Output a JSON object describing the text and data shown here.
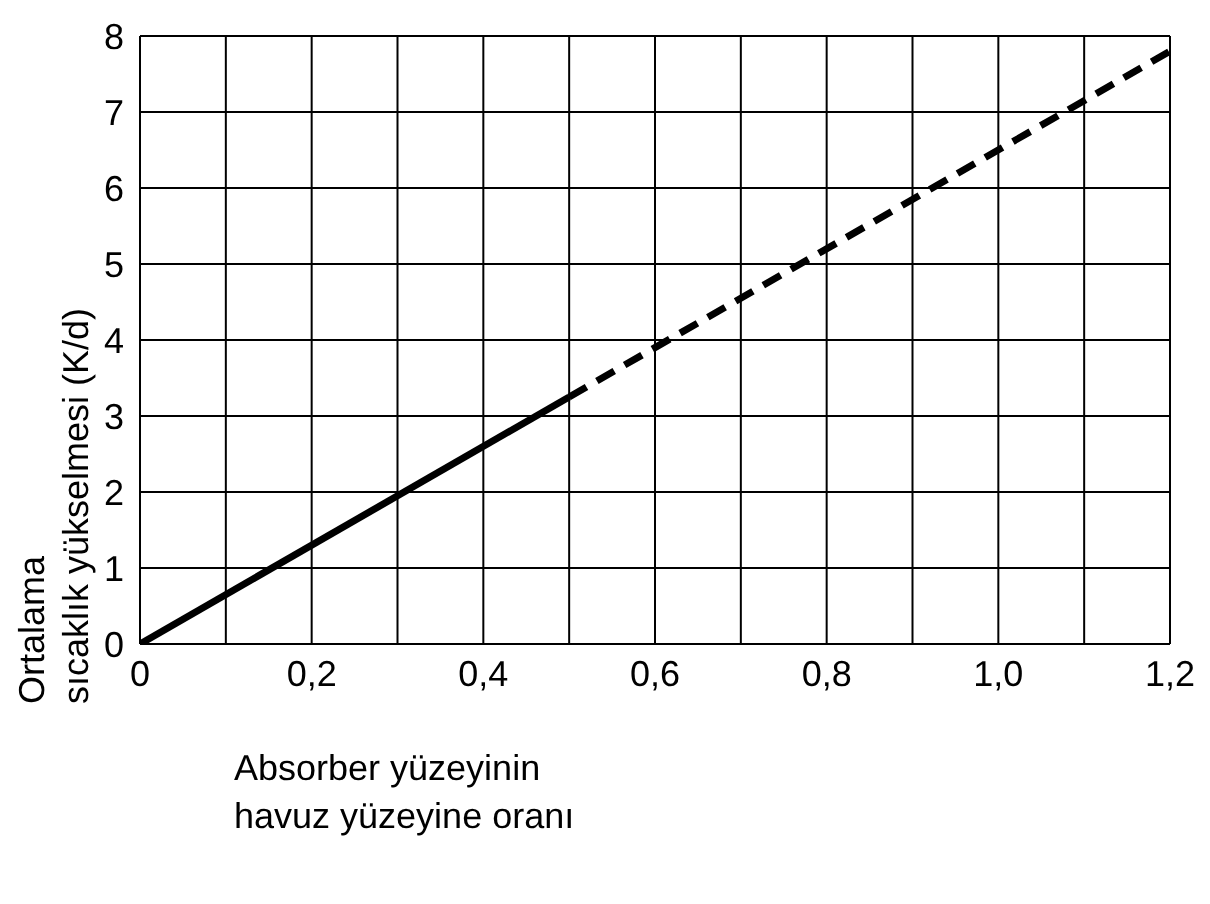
{
  "chart_data": {
    "type": "line",
    "xlabel": "Absorber yüzeyinin\nhavuz yüzeyine oranı",
    "ylabel": "Ortalama\nsıcaklık yükselmesi (K/d)",
    "series": [
      {
        "color": "#000000",
        "line_style": "solid",
        "x": [
          0,
          0.5
        ],
        "values": [
          0,
          3.25
        ]
      },
      {
        "color": "#000000",
        "line_style": "dashed",
        "x": [
          0.5,
          1.2
        ],
        "values": [
          3.25,
          7.8
        ]
      }
    ],
    "xlim": [
      0,
      1.2
    ],
    "ylim": [
      0,
      8
    ],
    "xticks": [
      0,
      {
        "value": 0.1,
        "label": null
      },
      {
        "value": 0.2,
        "label": "0,2"
      },
      {
        "value": 0.3,
        "label": null
      },
      {
        "value": 0.4,
        "label": "0,4"
      },
      {
        "value": 0.5,
        "label": null
      },
      {
        "value": 0.6,
        "label": "0,6"
      },
      {
        "value": 0.7,
        "label": null
      },
      {
        "value": 0.8,
        "label": "0,8"
      },
      {
        "value": 0.9,
        "label": null
      },
      {
        "value": 1.0,
        "label": "1,0"
      },
      {
        "value": 1.1,
        "label": null
      },
      {
        "value": 1.2,
        "label": "1,2"
      }
    ],
    "yticks": [
      0,
      1,
      2,
      3,
      4,
      5,
      6,
      7,
      8
    ],
    "grid": true,
    "marker": "none"
  }
}
